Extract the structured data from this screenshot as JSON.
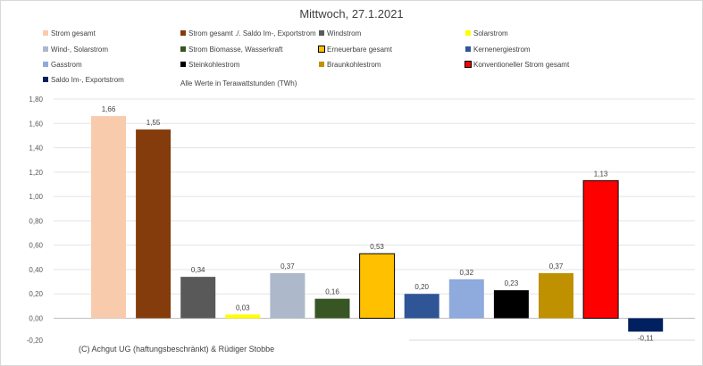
{
  "chart_data": {
    "type": "bar",
    "title": "Mittwoch,  27.1.2021",
    "subtitle": "Alle Werte in Terawattstunden (TWh)",
    "footer": "(C) Achgut UG (haftungsbeschränkt) & Rüdiger Stobbe",
    "ylim": [
      -0.11,
      1.8
    ],
    "yticks": [
      "1,80",
      "1,60",
      "1,40",
      "1,20",
      "1,00",
      "0,80",
      "0,60",
      "0,40",
      "0,20",
      "0,00",
      "-0,20"
    ],
    "ytick_values": [
      1.8,
      1.6,
      1.4,
      1.2,
      1.0,
      0.8,
      0.6,
      0.4,
      0.2,
      0.0,
      -0.2
    ],
    "grid": true,
    "legend_position": "top",
    "series": [
      {
        "name": "Strom gesamt",
        "value": 1.66,
        "label": "1,66",
        "color": "#f8cbad",
        "edge": "none"
      },
      {
        "name": "Strom gesamt ./. Saldo Im-, Exportstrom",
        "value": 1.55,
        "label": "1,55",
        "color": "#843c0c",
        "edge": "none"
      },
      {
        "name": "Windstrom",
        "value": 0.34,
        "label": "0,34",
        "color": "#595959",
        "edge": "none"
      },
      {
        "name": "Solarstrom",
        "value": 0.03,
        "label": "0,03",
        "color": "#ffff00",
        "edge": "none"
      },
      {
        "name": "Wind-, Solarstrom",
        "value": 0.37,
        "label": "0,37",
        "color": "#adb9ca",
        "edge": "none"
      },
      {
        "name": "Strom Biomasse, Wasserkraft",
        "value": 0.16,
        "label": "0,16",
        "color": "#375623",
        "edge": "none"
      },
      {
        "name": "Erneuerbare gesamt",
        "value": 0.53,
        "label": "0,53",
        "color": "#ffc000",
        "edge": "#000000"
      },
      {
        "name": "Kernenergiestrom",
        "value": 0.2,
        "label": "0,20",
        "color": "#2f5597",
        "edge": "none"
      },
      {
        "name": "Gasstrom",
        "value": 0.32,
        "label": "0,32",
        "color": "#8faadc",
        "edge": "none"
      },
      {
        "name": "Steinkohlestrom",
        "value": 0.23,
        "label": "0,23",
        "color": "#000000",
        "edge": "none"
      },
      {
        "name": "Braunkohlestrom",
        "value": 0.37,
        "label": "0,37",
        "color": "#bf9000",
        "edge": "none"
      },
      {
        "name": "Konventioneller Strom gesamt",
        "value": 1.13,
        "label": "1,13",
        "color": "#ff0000",
        "edge": "#000000"
      },
      {
        "name": "Saldo Im-, Exportstrom",
        "value": -0.11,
        "label": "-0,11",
        "color": "#002060",
        "edge": "none"
      }
    ]
  }
}
